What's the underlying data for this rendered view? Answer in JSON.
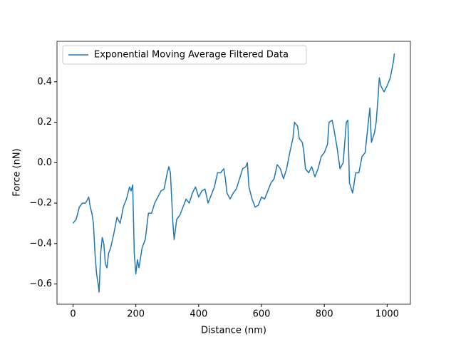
{
  "chart_data": {
    "type": "line",
    "xlabel": "Distance (nm)",
    "ylabel": "Force (nN)",
    "legend": "upper left",
    "grid": false,
    "xlim": [
      -51,
      1074
    ],
    "ylim": [
      -0.7,
      0.6
    ],
    "xticks": [
      0,
      200,
      400,
      600,
      800,
      1000
    ],
    "yticks": [
      {
        "value": -0.6,
        "label": "−0.6"
      },
      {
        "value": -0.4,
        "label": "−0.4"
      },
      {
        "value": -0.2,
        "label": "−0.2"
      },
      {
        "value": 0,
        "label": "0.0"
      },
      0.2,
      0.4
    ],
    "x": [
      0,
      10,
      20,
      30,
      40,
      50,
      55,
      60,
      65,
      70,
      75,
      80,
      83,
      88,
      93,
      98,
      103,
      108,
      113,
      120,
      130,
      140,
      150,
      160,
      170,
      180,
      185,
      190,
      195,
      200,
      205,
      210,
      220,
      230,
      240,
      250,
      260,
      270,
      280,
      290,
      300,
      305,
      310,
      318,
      322,
      330,
      340,
      350,
      360,
      370,
      380,
      390,
      400,
      410,
      420,
      430,
      440,
      450,
      460,
      470,
      480,
      485,
      490,
      500,
      510,
      520,
      530,
      540,
      550,
      555,
      560,
      570,
      580,
      590,
      600,
      610,
      620,
      630,
      640,
      650,
      660,
      670,
      680,
      690,
      700,
      705,
      715,
      720,
      730,
      735,
      740,
      750,
      760,
      770,
      780,
      790,
      800,
      810,
      815,
      825,
      830,
      840,
      850,
      860,
      870,
      875,
      880,
      890,
      900,
      910,
      920,
      930,
      940,
      945,
      950,
      960,
      965,
      970,
      975,
      980,
      990,
      1000,
      1010,
      1020,
      1023
    ],
    "series": [
      {
        "name": "Exponential Moving Average Filtered Data",
        "color": "#1f77b4",
        "values": [
          -0.3,
          -0.28,
          -0.22,
          -0.2,
          -0.2,
          -0.17,
          -0.22,
          -0.25,
          -0.3,
          -0.45,
          -0.55,
          -0.6,
          -0.64,
          -0.45,
          -0.37,
          -0.4,
          -0.5,
          -0.52,
          -0.45,
          -0.42,
          -0.35,
          -0.27,
          -0.3,
          -0.22,
          -0.18,
          -0.12,
          -0.14,
          -0.11,
          -0.45,
          -0.55,
          -0.48,
          -0.52,
          -0.42,
          -0.38,
          -0.25,
          -0.25,
          -0.2,
          -0.17,
          -0.14,
          -0.13,
          -0.05,
          -0.02,
          -0.05,
          -0.3,
          -0.38,
          -0.28,
          -0.26,
          -0.22,
          -0.18,
          -0.2,
          -0.15,
          -0.12,
          -0.17,
          -0.14,
          -0.13,
          -0.2,
          -0.16,
          -0.12,
          -0.05,
          -0.05,
          -0.03,
          -0.08,
          -0.15,
          -0.18,
          -0.15,
          -0.13,
          -0.08,
          -0.03,
          -0.02,
          0.0,
          -0.12,
          -0.18,
          -0.22,
          -0.21,
          -0.17,
          -0.18,
          -0.14,
          -0.1,
          -0.08,
          -0.01,
          -0.03,
          -0.08,
          -0.03,
          0.05,
          0.12,
          0.2,
          0.18,
          0.12,
          0.1,
          0.05,
          -0.03,
          -0.05,
          -0.02,
          -0.07,
          -0.03,
          0.03,
          0.05,
          0.09,
          0.2,
          0.21,
          0.17,
          0.08,
          -0.03,
          0.0,
          0.2,
          0.21,
          -0.1,
          -0.15,
          -0.05,
          -0.05,
          0.03,
          0.05,
          0.2,
          0.27,
          0.1,
          0.15,
          0.2,
          0.3,
          0.42,
          0.38,
          0.35,
          0.38,
          0.42,
          0.5,
          0.54
        ]
      }
    ]
  }
}
